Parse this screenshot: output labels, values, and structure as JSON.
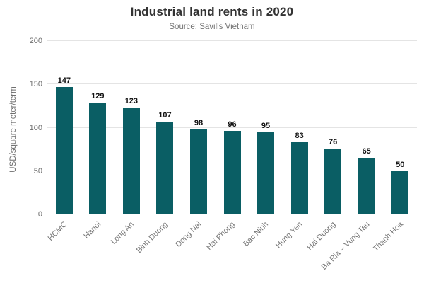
{
  "chart_data": {
    "type": "bar",
    "title": "Industrial land rents in 2020",
    "subtitle": "Source: Savills Vietnam",
    "ylabel": "USD/square meter/term",
    "xlabel": "",
    "categories": [
      "HCMC",
      "Hanoi",
      "Long An",
      "Binh Duong",
      "Dong Nai",
      "Hai Phong",
      "Bac Ninh",
      "Hung Yen",
      "Hai Duong",
      "Ba Ria – Vung Tau",
      "Thanh Hoa"
    ],
    "values": [
      147,
      129,
      123,
      107,
      98,
      96,
      95,
      83,
      76,
      65,
      50
    ],
    "ylim": [
      0,
      200
    ],
    "yticks": [
      0,
      50,
      100,
      150,
      200
    ],
    "grid": true,
    "legend": "none",
    "colors": {
      "bar": "#0a5e64",
      "value_label": "#111111",
      "axis_text": "#6e6e6e",
      "gridline": "#e4e4e4",
      "baseline": "#c9ced2",
      "title": "#333333",
      "subtitle": "#757575"
    }
  }
}
